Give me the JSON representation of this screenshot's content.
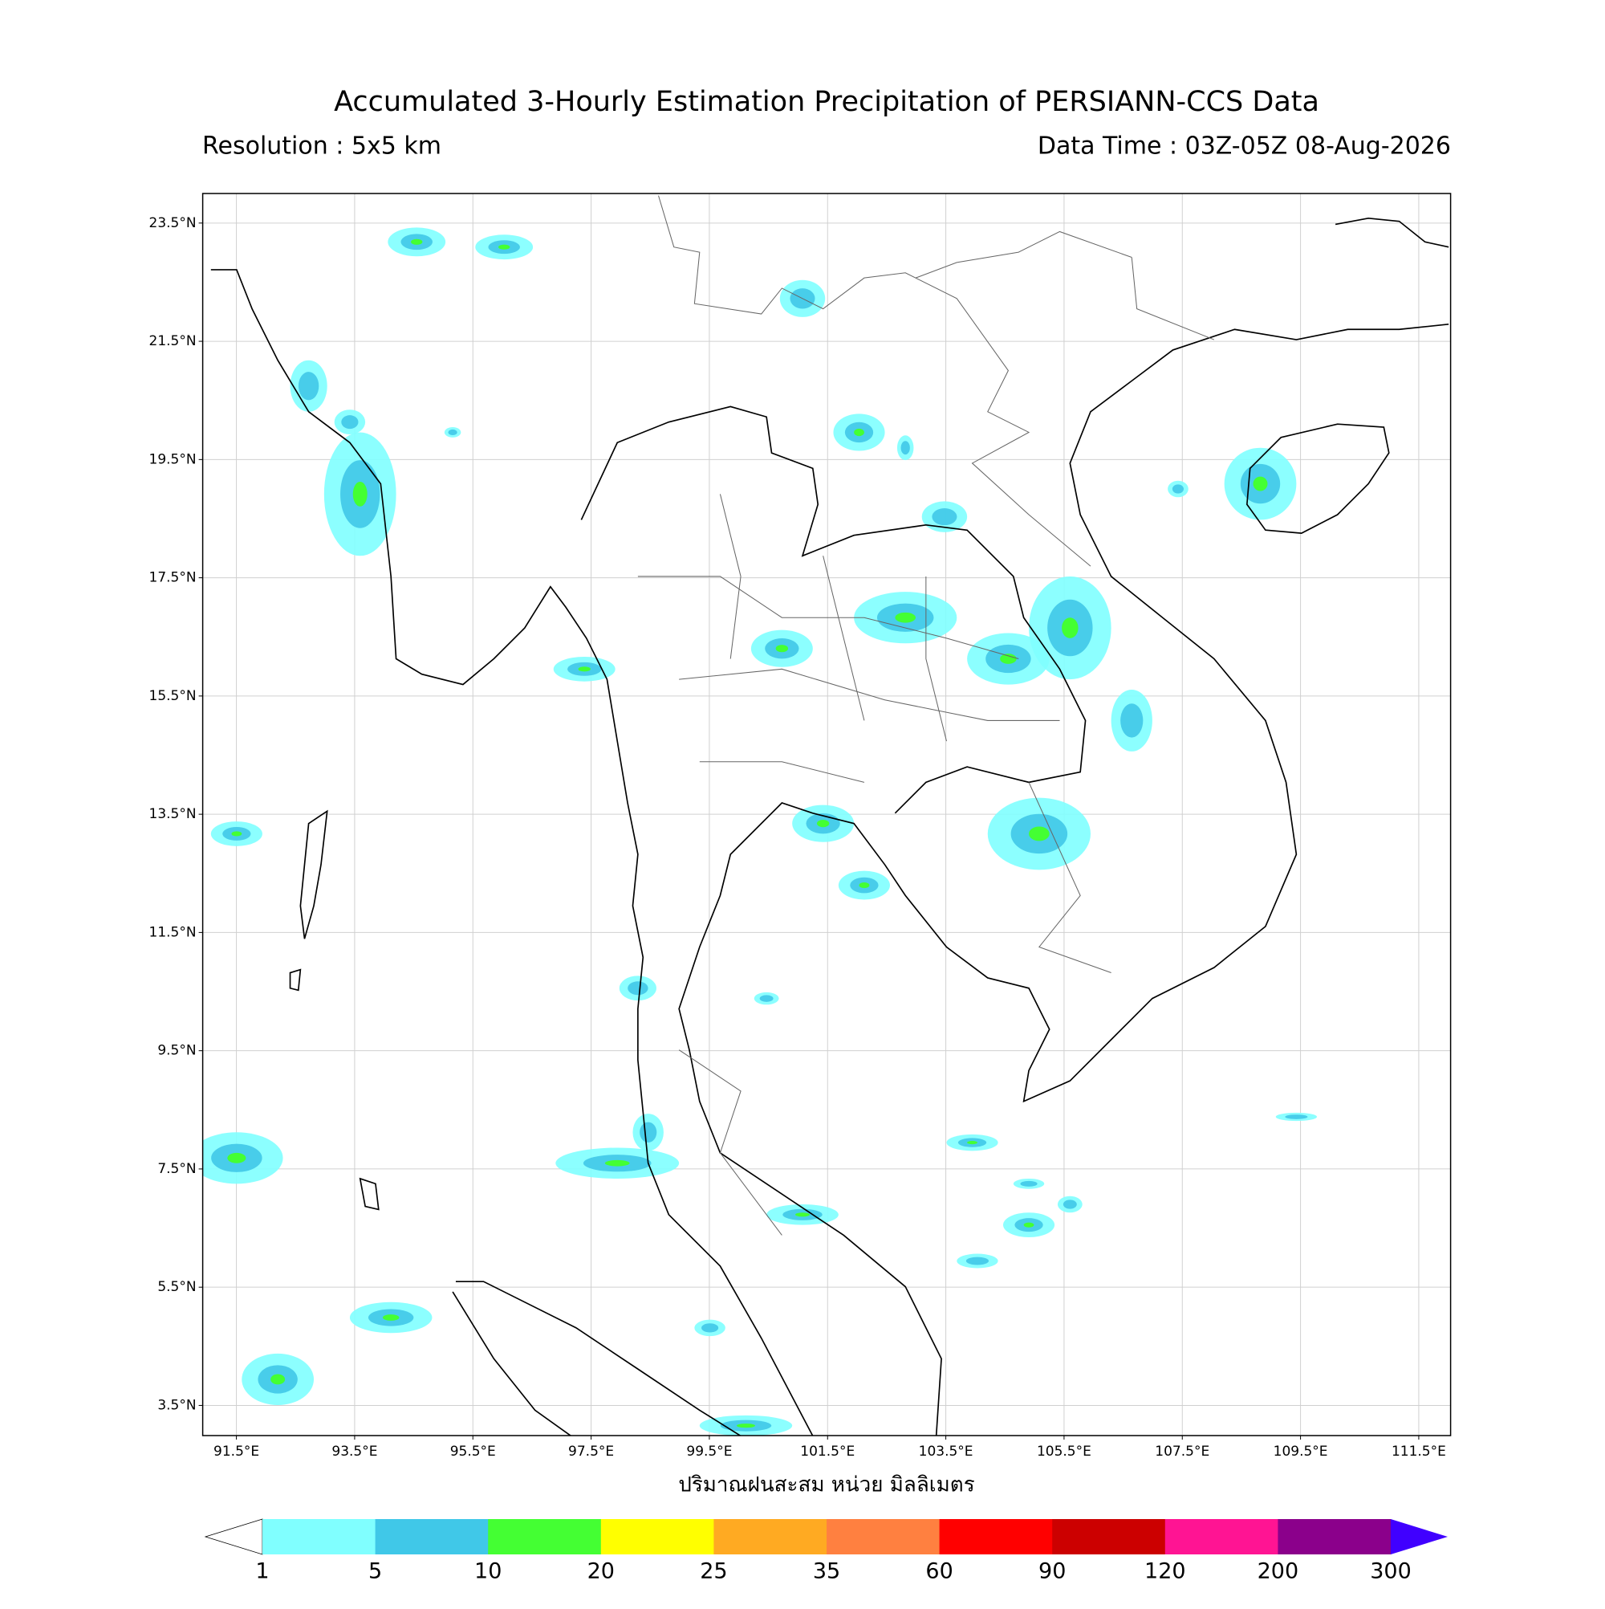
{
  "header": {
    "title": "Accumulated 3-Hourly Estimation Precipitation of PERSIANN-CCS Data",
    "resolution": "Resolution : 5x5 km",
    "data_time": "Data Time : 03Z-05Z 08-Aug-2026"
  },
  "map": {
    "lonlim": [
      90.93,
      112.04
    ],
    "latlim": [
      2.99,
      24.0
    ],
    "grid": true,
    "lat_ticks": [
      {
        "value": 3.5,
        "label": "3.5°N"
      },
      {
        "value": 5.5,
        "label": "5.5°N"
      },
      {
        "value": 7.5,
        "label": "7.5°N"
      },
      {
        "value": 9.5,
        "label": "9.5°N"
      },
      {
        "value": 11.5,
        "label": "11.5°N"
      },
      {
        "value": 13.5,
        "label": "13.5°N"
      },
      {
        "value": 15.5,
        "label": "15.5°N"
      },
      {
        "value": 17.5,
        "label": "17.5°N"
      },
      {
        "value": 19.5,
        "label": "19.5°N"
      },
      {
        "value": 21.5,
        "label": "21.5°N"
      },
      {
        "value": 23.5,
        "label": "23.5°N"
      }
    ],
    "lon_ticks": [
      {
        "value": 91.5,
        "label": "91.5°E"
      },
      {
        "value": 93.5,
        "label": "93.5°E"
      },
      {
        "value": 95.5,
        "label": "95.5°E"
      },
      {
        "value": 97.5,
        "label": "97.5°E"
      },
      {
        "value": 99.5,
        "label": "99.5°E"
      },
      {
        "value": 101.5,
        "label": "101.5°E"
      },
      {
        "value": 103.5,
        "label": "103.5°E"
      },
      {
        "value": 105.5,
        "label": "105.5°E"
      },
      {
        "value": 107.5,
        "label": "107.5°E"
      },
      {
        "value": 109.5,
        "label": "109.5°E"
      },
      {
        "value": 111.5,
        "label": "111.5°E"
      }
    ]
  },
  "colorbar": {
    "label": "ปริมาณฝนสะสม หน่วย มิลลิเมตร",
    "levels": [
      1,
      5,
      10,
      20,
      25,
      35,
      60,
      90,
      120,
      200,
      300
    ],
    "colors": [
      "#80ffff",
      "#40c8e8",
      "#44ff33",
      "#ffff00",
      "#ffaa22",
      "#ff8040",
      "#ff0000",
      "#cc0000",
      "#ff1493",
      "#8b008b"
    ],
    "under_color": "#ffffff",
    "over_color": "#4000ff"
  }
}
